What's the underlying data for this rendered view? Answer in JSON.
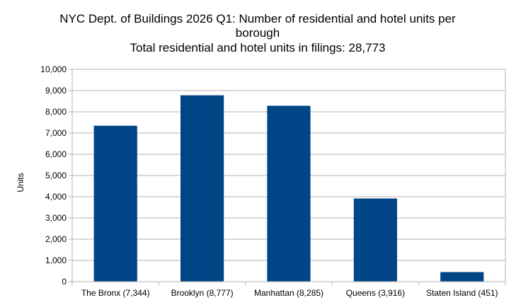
{
  "chart_data": {
    "type": "bar",
    "title": [
      "NYC Dept. of Buildings 2026 Q1: Number of residential and hotel units per",
      "borough",
      "Total residential and hotel units in filings: 28,773"
    ],
    "xlabel": "",
    "ylabel": "Units",
    "categories": [
      "The Bronx (7,344)",
      "Brooklyn (8,777)",
      "Manhattan (8,285)",
      "Queens (3,916)",
      "Staten Island (451)"
    ],
    "values": [
      7344,
      8777,
      8285,
      3916,
      451
    ],
    "ylim": [
      0,
      10000
    ],
    "yticks": [
      "0",
      "1,000",
      "2,000",
      "3,000",
      "4,000",
      "5,000",
      "6,000",
      "7,000",
      "8,000",
      "9,000",
      "10,000"
    ],
    "grid": true,
    "legend": "none",
    "bar_color": "#004586",
    "grid_color": "#b3b3b3"
  }
}
